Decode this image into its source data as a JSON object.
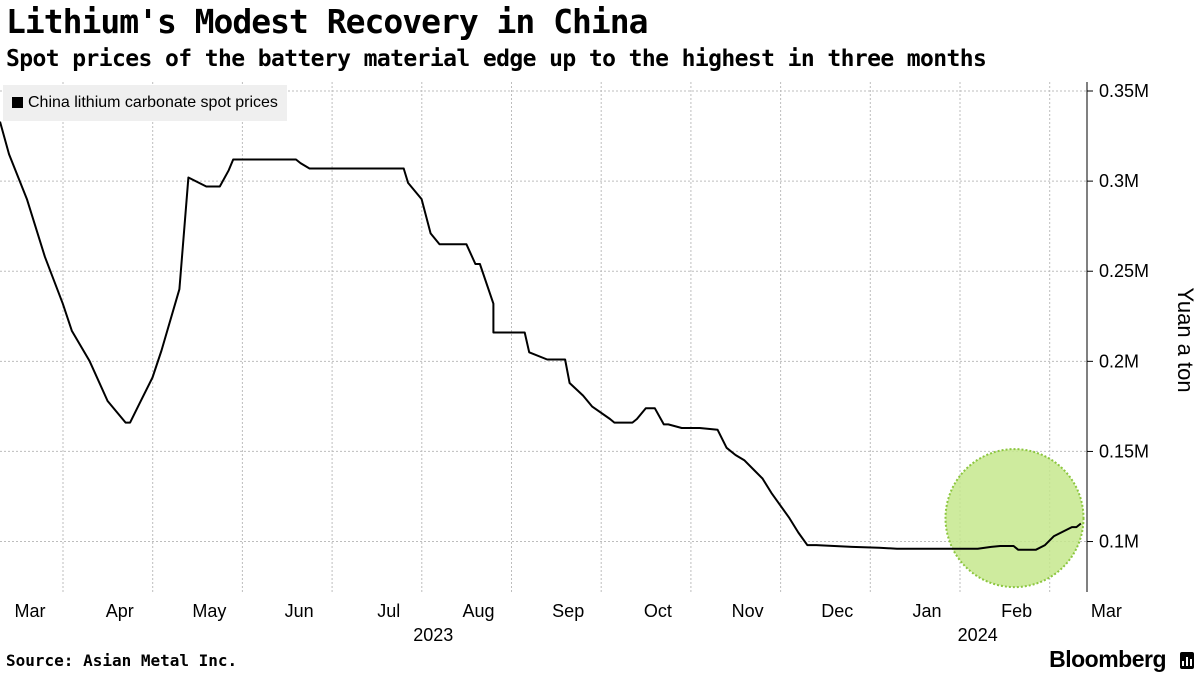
{
  "header": {
    "title": "Lithium's Modest Recovery in China",
    "subtitle": "Spot prices of the battery material edge up to the highest in three months"
  },
  "footer": {
    "source": "Source: Asian Metal Inc.",
    "brand": "Bloomberg"
  },
  "colors": {
    "line": "#000000",
    "grid": "#bdbdbd",
    "highlight_fill": "#c6e88d",
    "highlight_stroke": "#8cc63f",
    "legend_bg": "#efefef"
  },
  "chart_data": {
    "type": "line",
    "title": "Lithium's Modest Recovery in China",
    "subtitle": "Spot prices of the battery material edge up to the highest in three months",
    "ylabel": "Yuan a ton",
    "xlabel": "",
    "ylim": [
      72000,
      355000
    ],
    "xlim": [
      0,
      12.12
    ],
    "y_ticks": [
      100000,
      150000,
      200000,
      250000,
      300000,
      350000
    ],
    "y_tick_labels": [
      "0.1M",
      "0.15M",
      "0.2M",
      "0.25M",
      "0.3M",
      "0.35M"
    ],
    "x_tick_labels": [
      "Mar",
      "Apr",
      "May",
      "Jun",
      "Jul",
      "Aug",
      "Sep",
      "Oct",
      "Nov",
      "Dec",
      "Jan",
      "Feb",
      "Mar"
    ],
    "year_labels": [
      {
        "label": "2023",
        "at": 4.93
      },
      {
        "label": "2024",
        "at": 11.0
      }
    ],
    "grid": true,
    "legend": {
      "position": "top-left",
      "entries": [
        "China lithium carbonate spot prices"
      ]
    },
    "annotation": {
      "type": "highlight-circle",
      "center_month": 11.31,
      "center_value": 113000
    },
    "series": [
      {
        "name": "China lithium carbonate spot prices",
        "x": [
          0.0,
          0.1,
          0.3,
          0.5,
          0.7,
          0.8,
          1.0,
          1.2,
          1.4,
          1.45,
          1.55,
          1.7,
          1.8,
          2.0,
          2.1,
          2.3,
          2.4,
          2.45,
          2.55,
          2.6,
          3.3,
          3.35,
          3.45,
          3.65,
          3.67,
          3.8,
          4.5,
          4.55,
          4.7,
          4.8,
          4.9,
          5.2,
          5.3,
          5.35,
          5.5,
          5.5,
          5.6,
          5.85,
          5.9,
          6.1,
          6.3,
          6.35,
          6.5,
          6.6,
          6.8,
          6.85,
          7.0,
          7.05,
          7.1,
          7.2,
          7.3,
          7.4,
          7.45,
          7.6,
          7.8,
          8.0,
          8.1,
          8.2,
          8.3,
          8.4,
          8.5,
          8.6,
          8.8,
          8.9,
          9.0,
          9.1,
          9.5,
          9.8,
          10.0,
          10.35,
          10.5,
          10.9,
          11.05,
          11.15,
          11.3,
          11.35,
          11.45,
          11.55,
          11.65,
          11.75,
          11.95,
          12.0,
          12.05
        ],
        "values": [
          333000,
          315000,
          290000,
          258000,
          232000,
          217000,
          200000,
          178000,
          166000,
          166000,
          176000,
          191000,
          206000,
          240000,
          302000,
          297000,
          297000,
          297000,
          306000,
          312000,
          312000,
          310000,
          307000,
          307000,
          307000,
          307000,
          307000,
          299000,
          290000,
          271000,
          265000,
          265000,
          254000,
          254000,
          232000,
          216000,
          216000,
          216000,
          205000,
          201000,
          201000,
          188000,
          181000,
          175000,
          168000,
          166000,
          166000,
          166000,
          168000,
          174000,
          174000,
          165000,
          165000,
          163000,
          163000,
          162000,
          152000,
          148000,
          145000,
          140000,
          135000,
          127000,
          113000,
          105000,
          98000,
          98000,
          97000,
          96500,
          96000,
          96000,
          96000,
          96000,
          97000,
          97500,
          97500,
          95500,
          95500,
          95500,
          98000,
          103000,
          108000,
          108000,
          110000
        ]
      }
    ]
  }
}
